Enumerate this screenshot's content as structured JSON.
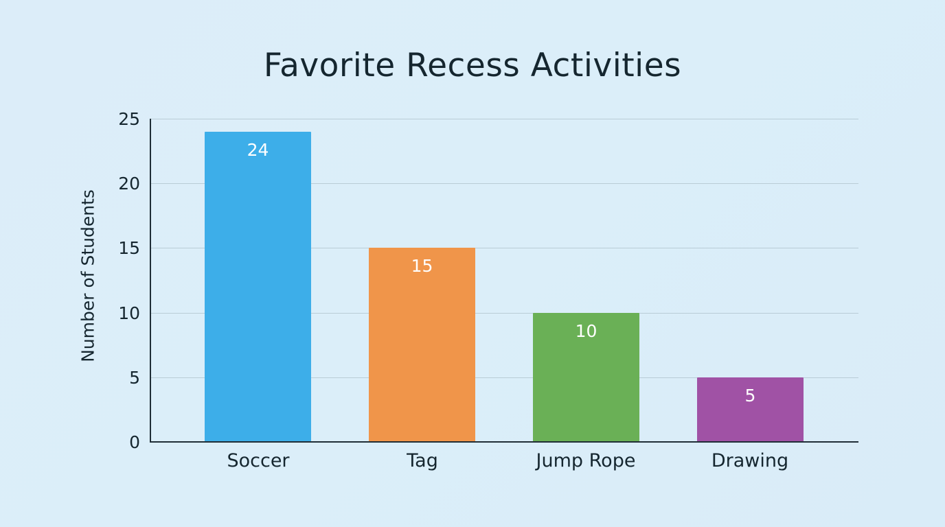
{
  "chart_data": {
    "type": "bar",
    "title": "Favorite Recess Activities",
    "xlabel": "",
    "ylabel": "Number of Students",
    "categories": [
      "Soccer",
      "Tag",
      "Jump Rope",
      "Drawing"
    ],
    "values": [
      24,
      15,
      10,
      5
    ],
    "data_labels": [
      "24",
      "15",
      "10",
      "5"
    ],
    "colors": [
      "#3daee9",
      "#f0954a",
      "#6ab056",
      "#a052a5"
    ],
    "ylim": [
      0,
      25
    ],
    "yticks": [
      "0",
      "5",
      "10",
      "15",
      "20",
      "25"
    ],
    "grid": true,
    "legend": null
  },
  "colors": {
    "background": "#dcedf9",
    "title_text": "#15262f",
    "gridline": "#b9ccd6",
    "axis": "#1f2d36"
  }
}
